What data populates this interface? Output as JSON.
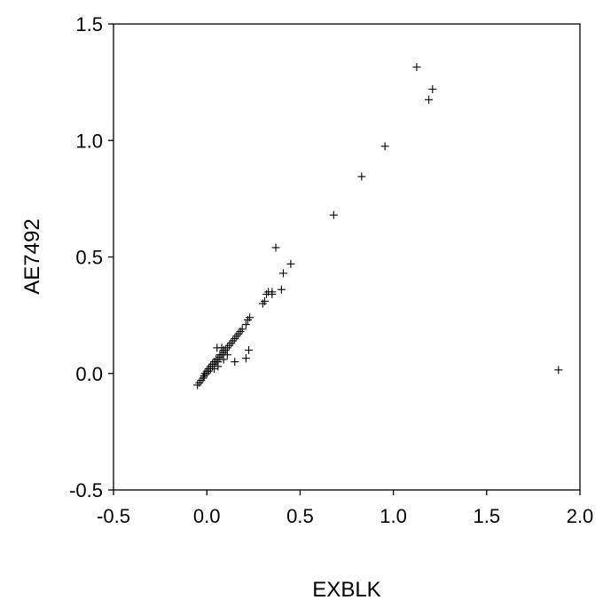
{
  "chart_data": {
    "type": "scatter",
    "title": "",
    "xlabel": "EXBLK",
    "ylabel": "AE7492",
    "xlim": [
      -0.5,
      2.0
    ],
    "ylim": [
      -0.5,
      1.5
    ],
    "x_ticks": [
      "-0.5",
      "0.0",
      "0.5",
      "1.0",
      "1.5",
      "2.0"
    ],
    "y_ticks": [
      "-0.5",
      "0.0",
      "0.5",
      "1.0",
      "1.5"
    ],
    "marker": "plus",
    "marker_color": "#000000",
    "grid": false,
    "legend": "none",
    "series": [
      {
        "points": [
          [
            -0.05,
            -0.05
          ],
          [
            -0.04,
            -0.04
          ],
          [
            -0.03,
            -0.03
          ],
          [
            -0.02,
            -0.02
          ],
          [
            -0.015,
            -0.01
          ],
          [
            -0.01,
            0.0
          ],
          [
            0.0,
            0.0
          ],
          [
            0.0,
            0.01
          ],
          [
            0.01,
            0.01
          ],
          [
            0.01,
            0.02
          ],
          [
            0.02,
            0.02
          ],
          [
            0.02,
            0.03
          ],
          [
            0.03,
            0.03
          ],
          [
            0.03,
            0.04
          ],
          [
            0.04,
            0.04
          ],
          [
            0.04,
            0.05
          ],
          [
            0.05,
            0.05
          ],
          [
            0.05,
            0.06
          ],
          [
            0.06,
            0.06
          ],
          [
            0.06,
            0.05
          ],
          [
            0.07,
            0.07
          ],
          [
            0.07,
            0.08
          ],
          [
            0.08,
            0.08
          ],
          [
            0.09,
            0.09
          ],
          [
            0.09,
            0.1
          ],
          [
            0.1,
            0.1
          ],
          [
            0.11,
            0.11
          ],
          [
            0.12,
            0.12
          ],
          [
            0.13,
            0.13
          ],
          [
            0.14,
            0.14
          ],
          [
            0.15,
            0.15
          ],
          [
            0.16,
            0.16
          ],
          [
            0.17,
            0.17
          ],
          [
            0.18,
            0.18
          ],
          [
            0.19,
            0.19
          ],
          [
            0.21,
            0.21
          ],
          [
            0.22,
            0.23
          ],
          [
            0.23,
            0.24
          ],
          [
            0.055,
            0.11
          ],
          [
            0.08,
            0.11
          ],
          [
            0.09,
            0.06
          ],
          [
            0.04,
            0.02
          ],
          [
            0.06,
            0.03
          ],
          [
            0.11,
            0.08
          ],
          [
            0.15,
            0.05
          ],
          [
            0.21,
            0.065
          ],
          [
            0.225,
            0.1
          ],
          [
            0.3,
            0.3
          ],
          [
            0.31,
            0.31
          ],
          [
            0.32,
            0.34
          ],
          [
            0.33,
            0.35
          ],
          [
            0.35,
            0.35
          ],
          [
            0.35,
            0.34
          ],
          [
            0.37,
            0.54
          ],
          [
            0.4,
            0.36
          ],
          [
            0.41,
            0.43
          ],
          [
            0.45,
            0.47
          ],
          [
            0.68,
            0.68
          ],
          [
            0.83,
            0.845
          ],
          [
            0.955,
            0.975
          ],
          [
            1.125,
            1.315
          ],
          [
            1.19,
            1.175
          ],
          [
            1.21,
            1.22
          ],
          [
            1.885,
            0.015
          ]
        ]
      }
    ]
  }
}
